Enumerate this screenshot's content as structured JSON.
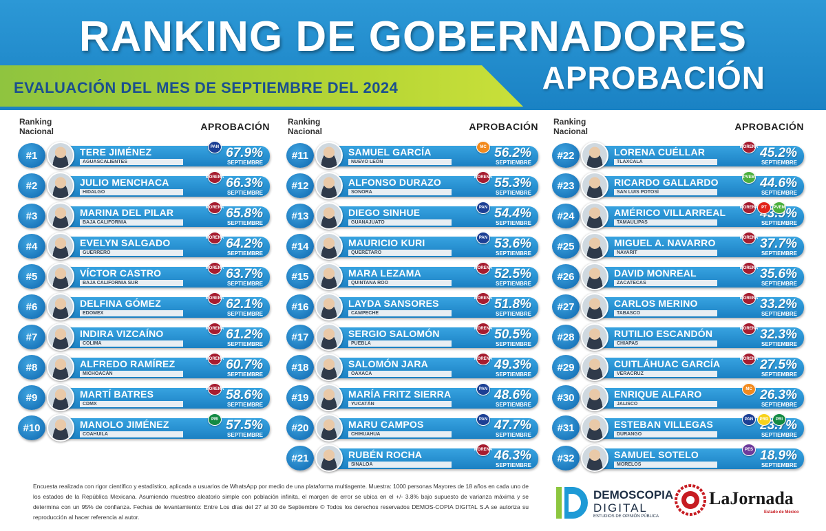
{
  "header": {
    "title": "RANKING DE GOBERNADORES",
    "subtitle": "EVALUACIÓN DEL MES DE SEPTIEMBRE DEL 2024",
    "approval_title": "APROBACIÓN"
  },
  "columns": [
    {
      "rank_label": "Ranking Nacional",
      "approval_label": "APROBACIÓN",
      "rows": [
        {
          "rank": "#1",
          "name": "TERE JIMÉNEZ",
          "state": "AGUASCALIENTES",
          "pct": "67.9%",
          "month": "SEPTIEMBRE",
          "parties": [
            "PAN"
          ]
        },
        {
          "rank": "#2",
          "name": "JULIO MENCHACA",
          "state": "HIDALGO",
          "pct": "66.3%",
          "month": "SEPTIEMBRE",
          "parties": [
            "MORENA"
          ]
        },
        {
          "rank": "#3",
          "name": "MARINA DEL PILAR",
          "state": "BAJA CALIFORNIA",
          "pct": "65.8%",
          "month": "SEPTIEMBRE",
          "parties": [
            "MORENA"
          ]
        },
        {
          "rank": "#4",
          "name": "EVELYN SALGADO",
          "state": "GUERRERO",
          "pct": "64.2%",
          "month": "SEPTIEMBRE",
          "parties": [
            "MORENA"
          ]
        },
        {
          "rank": "#5",
          "name": "VÍCTOR CASTRO",
          "state": "BAJA CALIFORNIA SUR",
          "pct": "63.7%",
          "month": "SEPTIEMBRE",
          "parties": [
            "MORENA"
          ]
        },
        {
          "rank": "#6",
          "name": "DELFINA GÓMEZ",
          "state": "EDOMEX",
          "pct": "62.1%",
          "month": "SEPTIEMBRE",
          "parties": [
            "MORENA"
          ]
        },
        {
          "rank": "#7",
          "name": "INDIRA VIZCAÍNO",
          "state": "COLIMA",
          "pct": "61.2%",
          "month": "SEPTIEMBRE",
          "parties": [
            "MORENA"
          ]
        },
        {
          "rank": "#8",
          "name": "ALFREDO RAMÍREZ",
          "state": "MICHOACÁN",
          "pct": "60.7%",
          "month": "SEPTIEMBRE",
          "parties": [
            "MORENA"
          ]
        },
        {
          "rank": "#9",
          "name": "MARTÍ BATRES",
          "state": "CDMX",
          "pct": "58.6%",
          "month": "SEPTIEMBRE",
          "parties": [
            "MORENA"
          ]
        },
        {
          "rank": "#10",
          "name": "MANOLO JIMÉNEZ",
          "state": "COAHUILA",
          "pct": "57.5%",
          "month": "SEPTIEMBRE",
          "parties": [
            "PRI"
          ]
        }
      ]
    },
    {
      "rank_label": "Ranking Nacional",
      "approval_label": "APROBACIÓN",
      "rows": [
        {
          "rank": "#11",
          "name": "SAMUEL GARCÍA",
          "state": "NUEVO LEÓN",
          "pct": "56.2%",
          "month": "SEPTIEMBRE",
          "parties": [
            "MC"
          ]
        },
        {
          "rank": "#12",
          "name": "ALFONSO DURAZO",
          "state": "SONORA",
          "pct": "55.3%",
          "month": "SEPTIEMBRE",
          "parties": [
            "MORENA"
          ]
        },
        {
          "rank": "#13",
          "name": "DIEGO SINHUE",
          "state": "GUANAJUATO",
          "pct": "54.4%",
          "month": "SEPTIEMBRE",
          "parties": [
            "PAN"
          ]
        },
        {
          "rank": "#14",
          "name": "MAURICIO KURI",
          "state": "QUERÉTARO",
          "pct": "53.6%",
          "month": "SEPTIEMBRE",
          "parties": [
            "PAN"
          ]
        },
        {
          "rank": "#15",
          "name": "MARA LEZAMA",
          "state": "QUINTANA ROO",
          "pct": "52.5%",
          "month": "SEPTIEMBRE",
          "parties": [
            "MORENA"
          ]
        },
        {
          "rank": "#16",
          "name": "LAYDA SANSORES",
          "state": "CAMPECHE",
          "pct": "51.8%",
          "month": "SEPTIEMBRE",
          "parties": [
            "MORENA"
          ]
        },
        {
          "rank": "#17",
          "name": "SERGIO SALOMÓN",
          "state": "PUEBLA",
          "pct": "50.5%",
          "month": "SEPTIEMBRE",
          "parties": [
            "MORENA"
          ]
        },
        {
          "rank": "#18",
          "name": "SALOMÓN JARA",
          "state": "OAXACA",
          "pct": "49.3%",
          "month": "SEPTIEMBRE",
          "parties": [
            "MORENA"
          ]
        },
        {
          "rank": "#19",
          "name": "MARÍA FRITZ SIERRA",
          "state": "YUCATÁN",
          "pct": "48.6%",
          "month": "SEPTIEMBRE",
          "parties": [
            "PAN"
          ]
        },
        {
          "rank": "#20",
          "name": "MARU CAMPOS",
          "state": "CHIHUAHUA",
          "pct": "47.7%",
          "month": "SEPTIEMBRE",
          "parties": [
            "PAN"
          ]
        },
        {
          "rank": "#21",
          "name": "RUBÉN ROCHA",
          "state": "SINALOA",
          "pct": "46.3%",
          "month": "SEPTIEMBRE",
          "parties": [
            "MORENA"
          ]
        }
      ]
    },
    {
      "rank_label": "Ranking Nacional",
      "approval_label": "APROBACIÓN",
      "rows": [
        {
          "rank": "#22",
          "name": "LORENA CUÉLLAR",
          "state": "TLAXCALA",
          "pct": "45.2%",
          "month": "SEPTIEMBRE",
          "parties": [
            "MORENA"
          ]
        },
        {
          "rank": "#23",
          "name": "RICARDO GALLARDO",
          "state": "SAN LUIS POTOSÍ",
          "pct": "44.6%",
          "month": "SEPTIEMBRE",
          "parties": [
            "PVEM"
          ]
        },
        {
          "rank": "#24",
          "name": "AMÉRICO VILLARREAL",
          "state": "TAMAULIPAS",
          "pct": "43.9%",
          "month": "SEPTIEMBRE",
          "parties": [
            "MORENA",
            "PT",
            "PVEM"
          ]
        },
        {
          "rank": "#25",
          "name": "MIGUEL A. NAVARRO",
          "state": "NAYARIT",
          "pct": "37.7%",
          "month": "SEPTIEMBRE",
          "parties": [
            "MORENA"
          ]
        },
        {
          "rank": "#26",
          "name": "DAVID MONREAL",
          "state": "ZACATECAS",
          "pct": "35.6%",
          "month": "SEPTIEMBRE",
          "parties": [
            "MORENA"
          ]
        },
        {
          "rank": "#27",
          "name": "CARLOS MERINO",
          "state": "TABASCO",
          "pct": "33.2%",
          "month": "SEPTIEMBRE",
          "parties": [
            "MORENA"
          ]
        },
        {
          "rank": "#28",
          "name": "RUTILIO ESCANDÓN",
          "state": "CHIAPAS",
          "pct": "32.3%",
          "month": "SEPTIEMBRE",
          "parties": [
            "MORENA"
          ]
        },
        {
          "rank": "#29",
          "name": "CUITLÁHUAC GARCÍA",
          "state": "VERACRUZ",
          "pct": "27.5%",
          "month": "SEPTIEMBRE",
          "parties": [
            "MORENA"
          ]
        },
        {
          "rank": "#30",
          "name": "ENRIQUE ALFARO",
          "state": "JALISCO",
          "pct": "26.3%",
          "month": "SEPTIEMBRE",
          "parties": [
            "MC"
          ]
        },
        {
          "rank": "#31",
          "name": "ESTEBAN VILLEGAS",
          "state": "DURANGO",
          "pct": "23.7%",
          "month": "SEPTIEMBRE",
          "parties": [
            "PAN",
            "PRD",
            "PRI"
          ]
        },
        {
          "rank": "#32",
          "name": "SAMUEL SOTELO",
          "state": "MORELOS",
          "pct": "18.9%",
          "month": "SEPTIEMBRE",
          "parties": [
            "PES"
          ]
        }
      ]
    }
  ],
  "party_colors": {
    "PAN": "#1c3f94",
    "MORENA": "#a61c2f",
    "PRI": "#138a43",
    "MC": "#f28a1e",
    "PVEM": "#4caf3d",
    "PT": "#e2231a",
    "PRD": "#f7d21a",
    "PES": "#6c3a9a"
  },
  "footer": {
    "note": "Encuesta realizada con rigor científico y estadístico, aplicada a usuarios de WhatsApp por medio de una plataforma multiagente. Muestra: 1000 personas Mayores de 18 años en cada uno de los estados de la República Mexicana. Asumiendo muestreo aleatorio simple con población infinita, el margen de error se ubica en el +/- 3.8% bajo supuesto de varianza máxima y se determina con un 95% de confianza. Fechas de levantamiento: Entre Los días del 27 al 30 de Septiembre © Todos los derechos reservados DEMOS-COPIA DIGITAL S.A se autoriza su reproducción al hacer referencia al autor.",
    "brand1_line1": "DEMOSCOPIA",
    "brand1_line2": "DIGITAL",
    "brand1_tagline": "ESTUDIOS DE OPINIÓN PÚBLICA",
    "brand2_name": "LaJornada",
    "brand2_sub": "Estado de México"
  }
}
